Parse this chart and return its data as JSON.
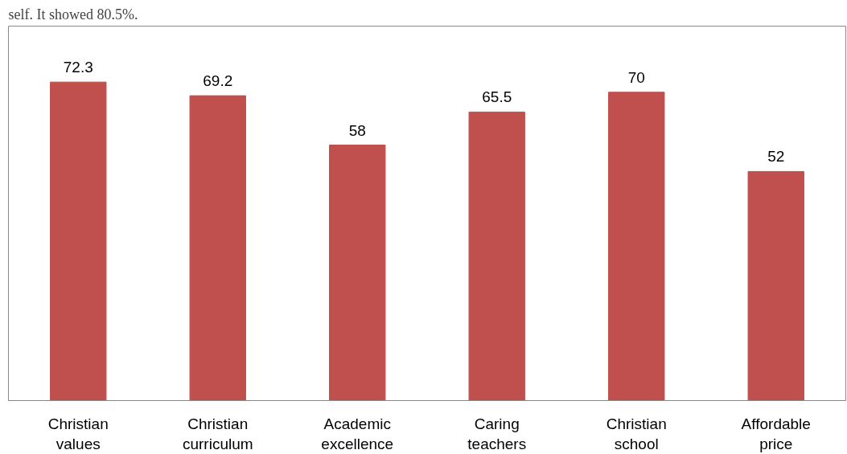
{
  "chart_data": {
    "type": "bar",
    "annotations": [
      "self. It showed 80.5%."
    ],
    "categories": [
      "Christian values",
      "Christian curriculum",
      "Academic excellence",
      "Caring teachers",
      "Christian school",
      "Affordable price"
    ],
    "values": [
      72.3,
      69.2,
      58,
      65.5,
      70,
      52
    ],
    "color": "#c0504d",
    "ylim": [
      0,
      85
    ],
    "data_labels": true,
    "grid": false
  }
}
